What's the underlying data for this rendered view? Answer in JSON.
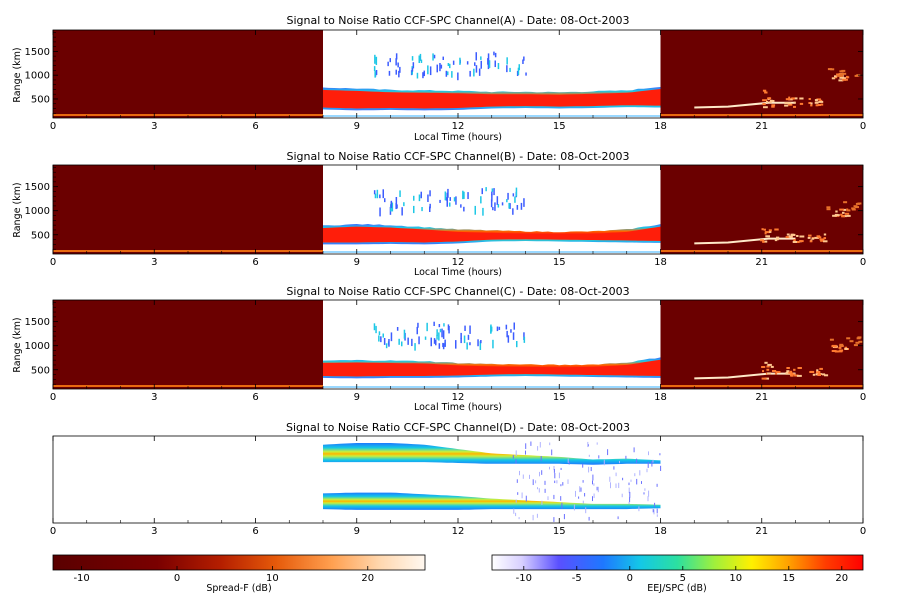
{
  "figure": {
    "panels": [
      {
        "title": "Signal to Noise Ratio CCF-SPC Channel(A) - Date: 08-Oct-2003",
        "xlabel": "Local Time (hours)",
        "ylabel": "Range (km)"
      },
      {
        "title": "Signal to Noise Ratio CCF-SPC Channel(B) - Date: 08-Oct-2003",
        "xlabel": "Local Time (hours)",
        "ylabel": "Range (km)"
      },
      {
        "title": "Signal to Noise Ratio CCF-SPC Channel(C) - Date: 08-Oct-2003",
        "xlabel": "Local Time (hours)",
        "ylabel": "Range (km)"
      },
      {
        "title": "Signal to Noise Ratio CCF-SPC Channel(D) - Date: 08-Oct-2003",
        "xlabel": "",
        "ylabel": ""
      }
    ],
    "colorbars": [
      {
        "label": "Spread-F (dB)",
        "ticks": [
          "-10",
          "0",
          "10",
          "20"
        ],
        "range": [
          -13,
          26
        ]
      },
      {
        "label": "EEJ/SPC (dB)",
        "ticks": [
          "-10",
          "-5",
          "0",
          "5",
          "10",
          "15",
          "20"
        ],
        "range": [
          -13,
          22
        ]
      }
    ],
    "colors": {
      "spread_f_background": "#6b0000",
      "spread_f_trace": "#ffe9c8",
      "eej_core": "#ff1e0a",
      "eej_edge": "#1ec8e6",
      "eej_sparse": "#3c5cff"
    }
  },
  "chart_data": [
    {
      "type": "heatmap",
      "title": "Signal to Noise Ratio CCF-SPC Channel(A) - Date: 08-Oct-2003",
      "xlabel": "Local Time (hours)",
      "ylabel": "Range (km)",
      "xlim": [
        0,
        24
      ],
      "ylim": [
        100,
        1950
      ],
      "xticks": [
        "0",
        "3",
        "6",
        "9",
        "12",
        "15",
        "18",
        "21",
        "0"
      ],
      "yticks": [
        500,
        1000,
        1500
      ],
      "night_spread_f_segments_hours": [
        [
          0,
          8
        ],
        [
          18,
          24
        ]
      ],
      "eej_window_hours": [
        8,
        18
      ],
      "eej_layer": {
        "x": [
          8,
          9,
          10,
          11,
          12,
          13,
          14,
          15,
          16,
          17,
          18
        ],
        "bottom_km": [
          280,
          260,
          270,
          260,
          270,
          300,
          310,
          300,
          310,
          330,
          320
        ],
        "top_km": [
          740,
          720,
          690,
          680,
          670,
          650,
          650,
          640,
          660,
          680,
          760
        ]
      },
      "night_trace": {
        "x": [
          19.0,
          20.0,
          21.2,
          22.0
        ],
        "y_km": [
          320,
          340,
          420,
          420
        ]
      }
    },
    {
      "type": "heatmap",
      "title": "Signal to Noise Ratio CCF-SPC Channel(B) - Date: 08-Oct-2003",
      "xlabel": "Local Time (hours)",
      "ylabel": "Range (km)",
      "xlim": [
        0,
        24
      ],
      "ylim": [
        100,
        1950
      ],
      "xticks": [
        "0",
        "3",
        "6",
        "9",
        "12",
        "15",
        "18",
        "21",
        "0"
      ],
      "yticks": [
        500,
        1000,
        1500
      ],
      "night_spread_f_segments_hours": [
        [
          0,
          8
        ],
        [
          18,
          24
        ]
      ],
      "eej_window_hours": [
        8,
        18
      ],
      "eej_layer": {
        "x": [
          8,
          9,
          10,
          11,
          12,
          13,
          14,
          15,
          16,
          17,
          18
        ],
        "bottom_km": [
          300,
          300,
          310,
          300,
          320,
          360,
          370,
          360,
          350,
          340,
          330
        ],
        "top_km": [
          690,
          720,
          700,
          660,
          610,
          590,
          570,
          560,
          570,
          610,
          720
        ]
      },
      "night_trace": {
        "x": [
          19.0,
          20.0,
          21.2,
          22.0
        ],
        "y_km": [
          320,
          340,
          420,
          420
        ]
      }
    },
    {
      "type": "heatmap",
      "title": "Signal to Noise Ratio CCF-SPC Channel(C) - Date: 08-Oct-2003",
      "xlabel": "Local Time (hours)",
      "ylabel": "Range (km)",
      "xlim": [
        0,
        24
      ],
      "ylim": [
        100,
        1950
      ],
      "xticks": [
        "0",
        "3",
        "6",
        "9",
        "12",
        "15",
        "18",
        "21",
        "0"
      ],
      "yticks": [
        500,
        1000,
        1500
      ],
      "night_spread_f_segments_hours": [
        [
          0,
          8
        ],
        [
          18,
          24
        ]
      ],
      "eej_window_hours": [
        8,
        18
      ],
      "eej_layer": {
        "x": [
          8,
          9,
          10,
          11,
          12,
          13,
          14,
          15,
          16,
          17,
          18
        ],
        "bottom_km": [
          330,
          320,
          330,
          330,
          340,
          360,
          370,
          360,
          350,
          340,
          330
        ],
        "top_km": [
          690,
          700,
          690,
          680,
          640,
          620,
          610,
          600,
          610,
          650,
          760
        ]
      },
      "night_trace": {
        "x": [
          19.0,
          20.0,
          21.2,
          22.0
        ],
        "y_km": [
          320,
          340,
          420,
          420
        ]
      }
    },
    {
      "type": "heatmap",
      "title": "Signal to Noise Ratio CCF-SPC Channel(D) - Date: 08-Oct-2003",
      "xlim": [
        0,
        24
      ],
      "xticks": [
        "0",
        "3",
        "6",
        "9",
        "12",
        "15",
        "18",
        "21",
        "0"
      ],
      "eej_window_hours": [
        8,
        18
      ],
      "bands": [
        {
          "x": [
            8,
            9,
            10,
            11,
            12,
            13,
            14,
            15,
            16,
            17,
            18
          ],
          "center_frac": [
            0.8,
            0.81,
            0.81,
            0.8,
            0.77,
            0.74,
            0.73,
            0.72,
            0.7,
            0.71,
            0.7
          ],
          "halfwidth_frac": [
            0.1,
            0.11,
            0.11,
            0.1,
            0.08,
            0.06,
            0.05,
            0.04,
            0.03,
            0.03,
            0.02
          ]
        },
        {
          "x": [
            8,
            9,
            10,
            11,
            12,
            13,
            14,
            15,
            16,
            17,
            18
          ],
          "center_frac": [
            0.25,
            0.25,
            0.25,
            0.24,
            0.23,
            0.22,
            0.21,
            0.2,
            0.19,
            0.19,
            0.19
          ],
          "halfwidth_frac": [
            0.09,
            0.1,
            0.1,
            0.09,
            0.08,
            0.06,
            0.05,
            0.04,
            0.03,
            0.03,
            0.02
          ]
        }
      ]
    }
  ]
}
